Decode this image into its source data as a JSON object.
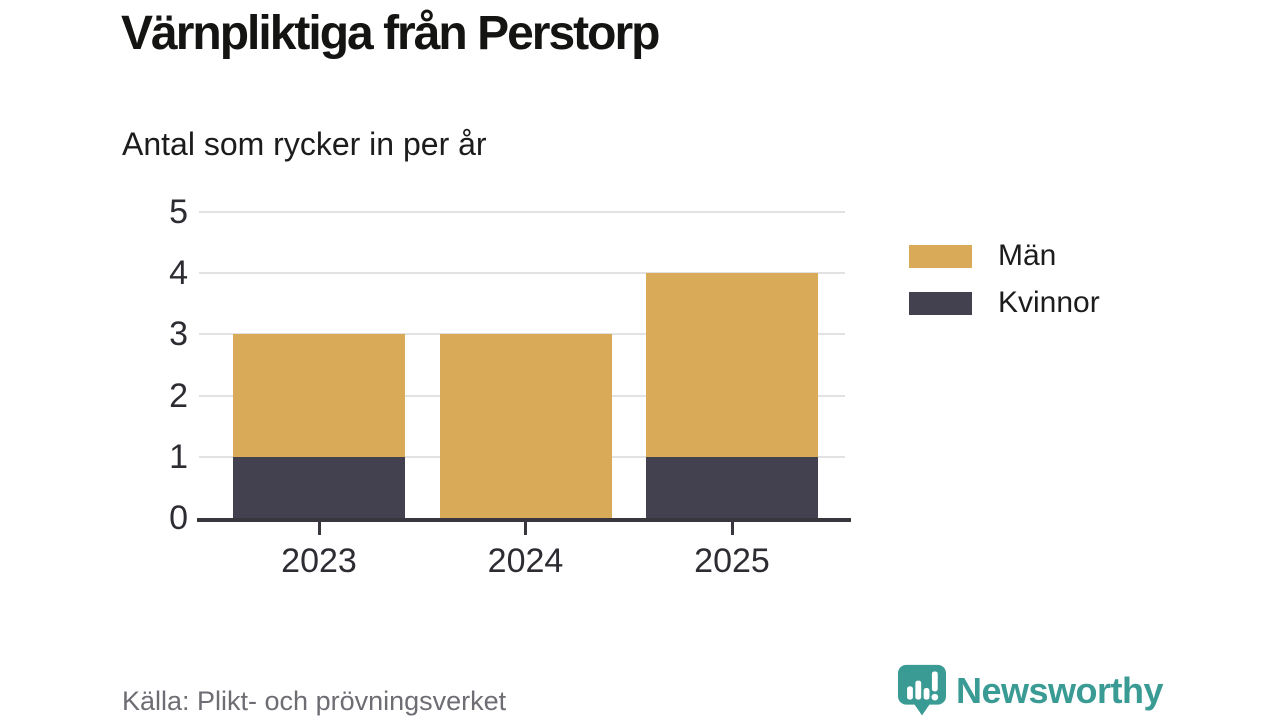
{
  "page": {
    "background": "#ffffff"
  },
  "header": {
    "title": "Värnpliktiga från Perstorp",
    "subtitle": "Antal som rycker in per år"
  },
  "footer": {
    "source": "Källa: Plikt- och prövningsverket",
    "brand": {
      "name": "Newsworthy",
      "color": "#3a9b94",
      "icon": "newsworthy-speech-bubble-bar-chart-icon"
    }
  },
  "chart_data": {
    "type": "bar",
    "stacked": true,
    "title": "Värnpliktiga från Perstorp",
    "subtitle": "Antal som rycker in per år",
    "categories": [
      "2023",
      "2024",
      "2025"
    ],
    "series": [
      {
        "name": "Män",
        "color": "#d9ab58",
        "values": [
          2,
          3,
          3
        ]
      },
      {
        "name": "Kvinnor",
        "color": "#434050",
        "values": [
          1,
          0,
          1
        ]
      }
    ],
    "stack_order_bottom_to_top": [
      "Kvinnor",
      "Män"
    ],
    "totals": [
      3,
      3,
      4
    ],
    "xlabel": "",
    "ylabel": "",
    "ylim": [
      0,
      5
    ],
    "yticks": [
      0,
      1,
      2,
      3,
      4,
      5
    ],
    "grid": true,
    "legend_position": "right",
    "colors": {
      "grid": "#e2e2e2",
      "axis": "#39363d",
      "tick_label": "#2d2c33"
    }
  }
}
